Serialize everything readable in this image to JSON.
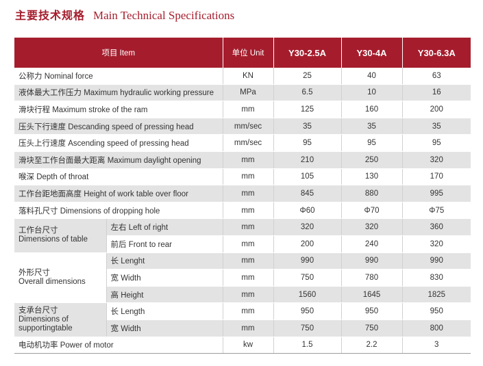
{
  "title": {
    "zh": "主要技术规格",
    "en": "Main Technical Specifications"
  },
  "header": {
    "item": "项目 Item",
    "unit": "单位 Unit",
    "models": [
      "Y30-2.5A",
      "Y30-4A",
      "Y30-6.3A"
    ]
  },
  "rows": [
    {
      "item": "公称力 Nominal force",
      "unit": "KN",
      "values": [
        "25",
        "40",
        "63"
      ]
    },
    {
      "item": "液体最大工作压力 Maximum hydraulic working pressure",
      "unit": "MPa",
      "values": [
        "6.5",
        "10",
        "16"
      ]
    },
    {
      "item": "滑块行程 Maximum stroke of the ram",
      "unit": "mm",
      "values": [
        "125",
        "160",
        "200"
      ]
    },
    {
      "item": "压头下行速度 Descanding speed of pressing head",
      "unit": "mm/sec",
      "values": [
        "35",
        "35",
        "35"
      ]
    },
    {
      "item": "压头上行速度 Ascending speed of pressing head",
      "unit": "mm/sec",
      "values": [
        "95",
        "95",
        "95"
      ]
    },
    {
      "item": "滑块至工作台面最大距离 Maximum daylight opening",
      "unit": "mm",
      "values": [
        "210",
        "250",
        "320"
      ]
    },
    {
      "item": "喉深 Depth of throat",
      "unit": "mm",
      "values": [
        "105",
        "130",
        "170"
      ]
    },
    {
      "item": "工作台距地面高度 Height of work table over floor",
      "unit": "mm",
      "values": [
        "845",
        "880",
        "995"
      ]
    },
    {
      "item": "落料孔尺寸 Dimensions of dropping hole",
      "unit": "mm",
      "values": [
        "Φ60",
        "Φ70",
        "Φ75"
      ]
    }
  ],
  "groups": {
    "table_dims": {
      "label_zh": "工作台尺寸",
      "label_en": "Dimensions of table",
      "rows": [
        {
          "sub": "左右 Left of right",
          "unit": "mm",
          "values": [
            "320",
            "320",
            "360"
          ]
        },
        {
          "sub": "前后 Front to rear",
          "unit": "mm",
          "values": [
            "200",
            "240",
            "320"
          ]
        }
      ]
    },
    "overall_dims": {
      "label_zh": "外形尺寸",
      "label_en": "Overall dimensions",
      "rows": [
        {
          "sub": "长 Lenght",
          "unit": "mm",
          "values": [
            "990",
            "990",
            "990"
          ]
        },
        {
          "sub": "宽 Width",
          "unit": "mm",
          "values": [
            "750",
            "780",
            "830"
          ]
        },
        {
          "sub": "高 Height",
          "unit": "mm",
          "values": [
            "1560",
            "1645",
            "1825"
          ]
        }
      ]
    },
    "support_table": {
      "label_zh": "支承台尺寸",
      "label_en": "Dimensions of supportingtable",
      "rows": [
        {
          "sub": "长 Length",
          "unit": "mm",
          "values": [
            "950",
            "950",
            "950"
          ]
        },
        {
          "sub": "宽 Width",
          "unit": "mm",
          "values": [
            "750",
            "750",
            "800"
          ]
        }
      ]
    }
  },
  "last_row": {
    "item": "电动机功率 Power of motor",
    "unit": "kw",
    "values": [
      "1.5",
      "2.2",
      "3"
    ]
  }
}
